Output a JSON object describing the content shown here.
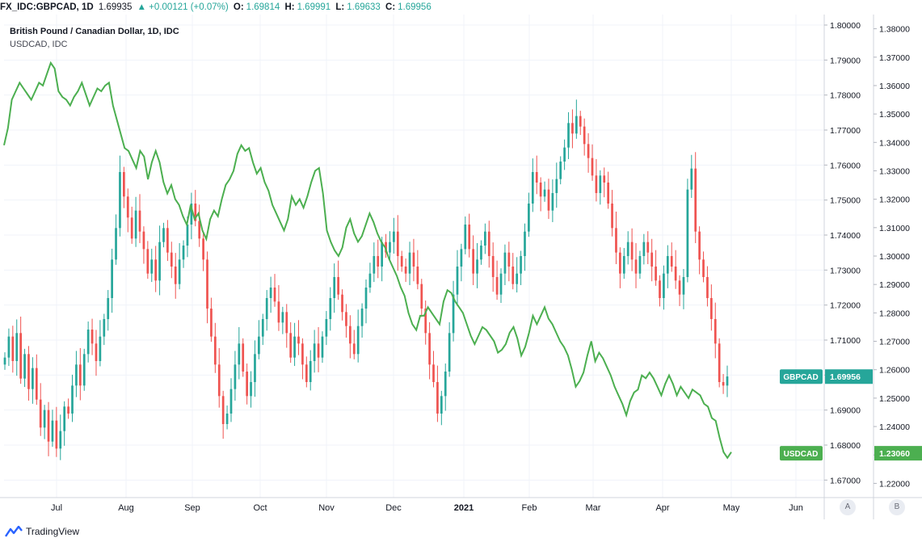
{
  "header": {
    "symbol": "FX_IDC:GBPCAD, 1D",
    "last": "1.69935",
    "change": "▲ +0.00121 (+0.07%)",
    "o_label": "O:",
    "o_value": "1.69814",
    "h_label": "H:",
    "h_value": "1.69991",
    "l_label": "L:",
    "l_value": "1.69633",
    "c_label": "C:",
    "c_value": "1.69956"
  },
  "legend": {
    "main": "British Pound / Canadian Dollar, 1D, IDC",
    "compare": "USDCAD, IDC"
  },
  "footer": {
    "brand": "TradingView"
  },
  "scale_buttons": {
    "a": "A",
    "b": "B"
  },
  "colors": {
    "up": "#26a69a",
    "down": "#ef5350",
    "compare": "#4caf50",
    "grid": "#f0f3fa"
  },
  "chart_data": {
    "type": "candlestick",
    "x_ticks": [
      "Jul",
      "Aug",
      "Sep",
      "Oct",
      "Nov",
      "Dec",
      "2021",
      "Feb",
      "Mar",
      "Apr",
      "May",
      "Jun"
    ],
    "y_left_ticks": [
      "1.80000",
      "1.79000",
      "1.78000",
      "1.77000",
      "1.76000",
      "1.75000",
      "1.74000",
      "1.73000",
      "1.72000",
      "1.71000",
      "1.70000",
      "1.69000",
      "1.68000",
      "1.67000"
    ],
    "y_right_ticks": [
      "1.38000",
      "1.37000",
      "1.36000",
      "1.35000",
      "1.34000",
      "1.33000",
      "1.32000",
      "1.31000",
      "1.30000",
      "1.29000",
      "1.28000",
      "1.27000",
      "1.26000",
      "1.25000",
      "1.24000",
      "1.23000",
      "1.22000"
    ],
    "gbpcad_range": [
      1.665,
      1.803
    ],
    "usdcad_range": [
      1.215,
      1.385
    ],
    "series": [
      {
        "name": "GBPCAD",
        "last_label": "GBPCAD",
        "last_value": "1.69956",
        "closes": [
          1.705,
          1.711,
          1.704,
          1.712,
          1.699,
          1.706,
          1.696,
          1.702,
          1.693,
          1.685,
          1.69,
          1.681,
          1.687,
          1.679,
          1.684,
          1.691,
          1.689,
          1.697,
          1.703,
          1.697,
          1.706,
          1.713,
          1.709,
          1.704,
          1.711,
          1.716,
          1.722,
          1.733,
          1.742,
          1.758,
          1.751,
          1.745,
          1.739,
          1.747,
          1.741,
          1.736,
          1.729,
          1.733,
          1.727,
          1.738,
          1.742,
          1.735,
          1.731,
          1.726,
          1.733,
          1.737,
          1.743,
          1.749,
          1.744,
          1.739,
          1.733,
          1.719,
          1.711,
          1.703,
          1.694,
          1.686,
          1.689,
          1.696,
          1.703,
          1.709,
          1.701,
          1.694,
          1.698,
          1.706,
          1.711,
          1.716,
          1.722,
          1.725,
          1.721,
          1.715,
          1.718,
          1.712,
          1.705,
          1.711,
          1.709,
          1.703,
          1.698,
          1.704,
          1.709,
          1.705,
          1.711,
          1.716,
          1.722,
          1.728,
          1.723,
          1.718,
          1.714,
          1.709,
          1.706,
          1.714,
          1.719,
          1.725,
          1.729,
          1.734,
          1.731,
          1.738,
          1.735,
          1.738,
          1.741,
          1.734,
          1.731,
          1.729,
          1.735,
          1.731,
          1.726,
          1.719,
          1.712,
          1.703,
          1.698,
          1.689,
          1.694,
          1.701,
          1.712,
          1.723,
          1.731,
          1.736,
          1.743,
          1.736,
          1.729,
          1.733,
          1.737,
          1.741,
          1.734,
          1.728,
          1.723,
          1.729,
          1.735,
          1.731,
          1.726,
          1.729,
          1.734,
          1.741,
          1.749,
          1.758,
          1.755,
          1.751,
          1.753,
          1.747,
          1.752,
          1.756,
          1.761,
          1.765,
          1.772,
          1.769,
          1.774,
          1.771,
          1.766,
          1.762,
          1.757,
          1.752,
          1.757,
          1.755,
          1.749,
          1.742,
          1.735,
          1.729,
          1.734,
          1.738,
          1.733,
          1.729,
          1.734,
          1.738,
          1.735,
          1.731,
          1.727,
          1.722,
          1.729,
          1.734,
          1.731,
          1.727,
          1.723,
          1.728,
          1.753,
          1.759,
          1.741,
          1.733,
          1.728,
          1.722,
          1.716,
          1.709,
          1.698,
          1.697,
          1.6996
        ],
        "range_note": "OHLC candles, 1D"
      },
      {
        "name": "USDCAD",
        "last_label": "USDCAD",
        "last_value": "1.23060",
        "values": [
          1.339,
          1.345,
          1.355,
          1.358,
          1.361,
          1.359,
          1.357,
          1.355,
          1.358,
          1.361,
          1.36,
          1.364,
          1.368,
          1.366,
          1.358,
          1.356,
          1.355,
          1.353,
          1.356,
          1.358,
          1.361,
          1.357,
          1.353,
          1.356,
          1.359,
          1.358,
          1.36,
          1.361,
          1.353,
          1.348,
          1.343,
          1.338,
          1.337,
          1.334,
          1.331,
          1.337,
          1.335,
          1.327,
          1.333,
          1.337,
          1.333,
          1.326,
          1.322,
          1.325,
          1.32,
          1.318,
          1.314,
          1.311,
          1.318,
          1.313,
          1.315,
          1.309,
          1.306,
          1.313,
          1.316,
          1.314,
          1.32,
          1.325,
          1.327,
          1.33,
          1.336,
          1.339,
          1.337,
          1.338,
          1.333,
          1.329,
          1.331,
          1.326,
          1.323,
          1.318,
          1.315,
          1.312,
          1.309,
          1.313,
          1.321,
          1.318,
          1.32,
          1.317,
          1.321,
          1.326,
          1.33,
          1.331,
          1.322,
          1.309,
          1.305,
          1.302,
          1.3,
          1.303,
          1.31,
          1.313,
          1.308,
          1.305,
          1.307,
          1.311,
          1.315,
          1.312,
          1.308,
          1.305,
          1.303,
          1.299,
          1.296,
          1.293,
          1.289,
          1.286,
          1.28,
          1.276,
          1.274,
          1.279,
          1.279,
          1.282,
          1.28,
          1.278,
          1.276,
          1.284,
          1.288,
          1.287,
          1.284,
          1.282,
          1.28,
          1.276,
          1.272,
          1.269,
          1.272,
          1.275,
          1.274,
          1.272,
          1.27,
          1.266,
          1.267,
          1.269,
          1.273,
          1.275,
          1.271,
          1.265,
          1.268,
          1.273,
          1.279,
          1.276,
          1.279,
          1.282,
          1.278,
          1.276,
          1.273,
          1.27,
          1.268,
          1.265,
          1.26,
          1.254,
          1.256,
          1.259,
          1.265,
          1.27,
          1.263,
          1.266,
          1.264,
          1.261,
          1.258,
          1.254,
          1.251,
          1.248,
          1.244,
          1.249,
          1.252,
          1.253,
          1.258,
          1.257,
          1.259,
          1.257,
          1.254,
          1.251,
          1.255,
          1.258,
          1.255,
          1.251,
          1.254,
          1.252,
          1.25,
          1.253,
          1.252,
          1.251,
          1.248,
          1.247,
          1.243,
          1.242,
          1.236,
          1.231,
          1.229,
          1.231
        ]
      }
    ]
  }
}
